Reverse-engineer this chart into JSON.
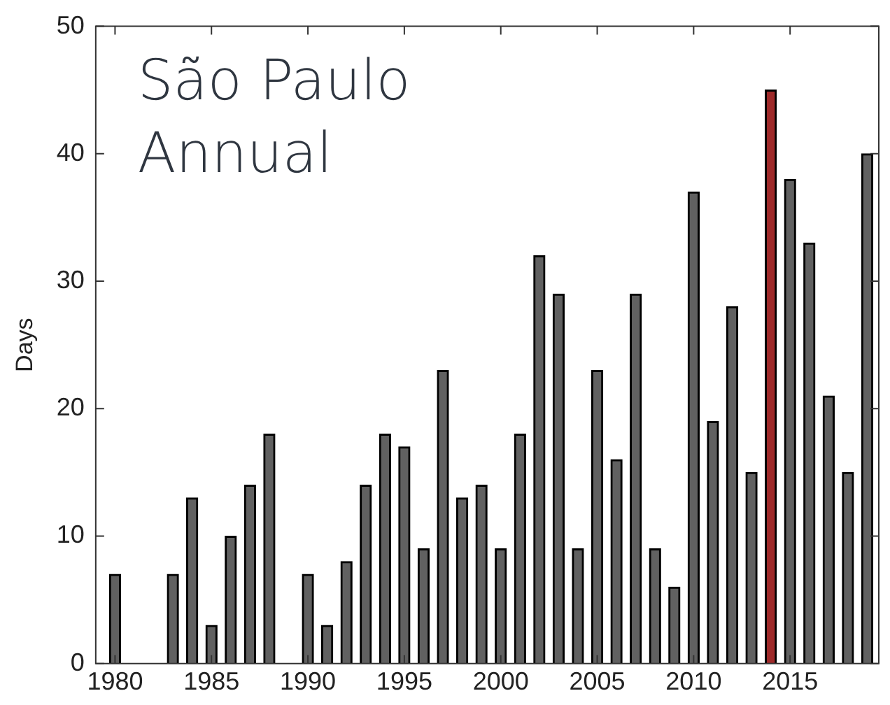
{
  "chart_data": {
    "type": "bar",
    "title": "São Paulo Annual",
    "ylabel": "Days",
    "x": [
      1980,
      1981,
      1982,
      1983,
      1984,
      1985,
      1986,
      1987,
      1988,
      1989,
      1990,
      1991,
      1992,
      1993,
      1994,
      1995,
      1996,
      1997,
      1998,
      1999,
      2000,
      2001,
      2002,
      2003,
      2004,
      2005,
      2006,
      2007,
      2008,
      2009,
      2010,
      2011,
      2012,
      2013,
      2014,
      2015,
      2016,
      2017,
      2018,
      2019
    ],
    "values": [
      7,
      0,
      0,
      7,
      13,
      3,
      10,
      14,
      18,
      0,
      7,
      3,
      8,
      14,
      18,
      17,
      9,
      23,
      13,
      14,
      9,
      18,
      32,
      29,
      9,
      23,
      16,
      29,
      9,
      6,
      37,
      19,
      28,
      15,
      45,
      38,
      33,
      21,
      15,
      40
    ],
    "colors": [
      "#616161",
      "#616161",
      "#616161",
      "#616161",
      "#616161",
      "#616161",
      "#616161",
      "#616161",
      "#616161",
      "#616161",
      "#616161",
      "#616161",
      "#616161",
      "#616161",
      "#616161",
      "#616161",
      "#616161",
      "#616161",
      "#616161",
      "#616161",
      "#616161",
      "#616161",
      "#616161",
      "#616161",
      "#616161",
      "#616161",
      "#616161",
      "#616161",
      "#616161",
      "#616161",
      "#616161",
      "#616161",
      "#616161",
      "#616161",
      "#9e2a2a",
      "#616161",
      "#616161",
      "#616161",
      "#616161",
      "#616161"
    ],
    "xlim": [
      1979,
      2019.6
    ],
    "xticks": [
      1980,
      1985,
      1990,
      1995,
      2000,
      2005,
      2010,
      2015
    ],
    "ylim": [
      0,
      50
    ],
    "yticks": [
      0,
      10,
      20,
      30,
      40,
      50
    ],
    "grid": false,
    "legend": false
  }
}
